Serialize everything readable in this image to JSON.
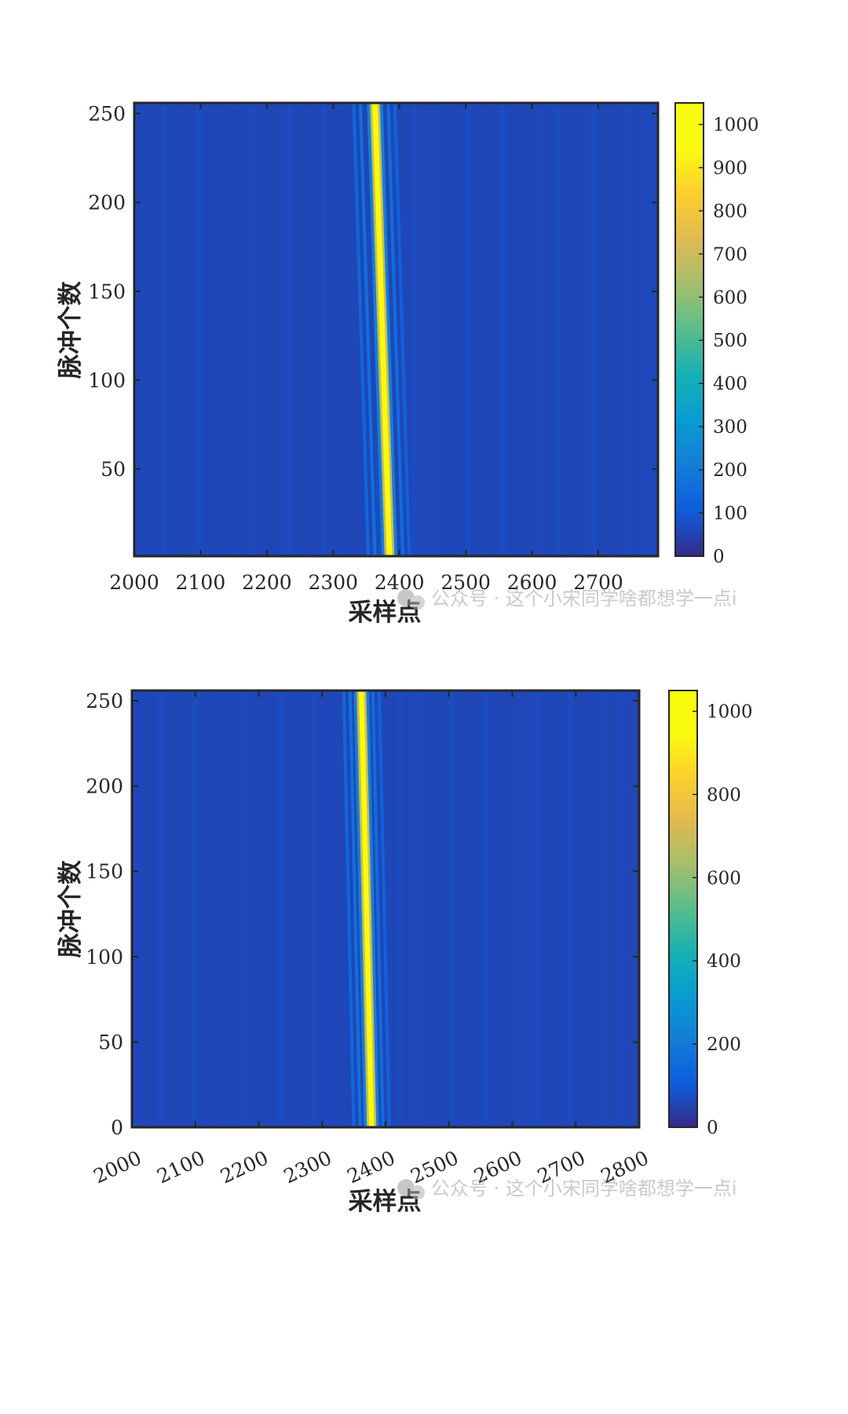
{
  "watermark": "公众号 · 这个小宋同学啥都想学一点i",
  "chart_data": [
    {
      "type": "heatmap",
      "title": "",
      "xlabel": "采样点",
      "ylabel": "脉冲个数",
      "xlim": [
        2000,
        2790
      ],
      "ylim": [
        1,
        256
      ],
      "x_ticks": [
        2000,
        2100,
        2200,
        2300,
        2400,
        2500,
        2600,
        2700
      ],
      "y_ticks": [
        50,
        100,
        150,
        200,
        250
      ],
      "x_tick_rotation": 0,
      "colorbar": {
        "min": 0,
        "max": 1050,
        "ticks": [
          0,
          100,
          200,
          300,
          400,
          500,
          600,
          700,
          800,
          900,
          1000
        ],
        "colormap": "parula"
      },
      "background_value": 60,
      "peak": {
        "value": 1000,
        "x_at_y_min": 2385,
        "x_at_y_max": 2363
      },
      "sidelobes": [
        {
          "offset": -32,
          "value": 140
        },
        {
          "offset": -22,
          "value": 170
        },
        {
          "offset": 20,
          "value": 160
        },
        {
          "offset": 30,
          "value": 120
        }
      ]
    },
    {
      "type": "heatmap",
      "title": "",
      "xlabel": "采样点",
      "ylabel": "脉冲个数",
      "xlim": [
        2000,
        2800
      ],
      "ylim": [
        0,
        256
      ],
      "x_ticks": [
        2000,
        2100,
        2200,
        2300,
        2400,
        2500,
        2600,
        2700,
        2800
      ],
      "y_ticks": [
        0,
        50,
        100,
        150,
        200,
        250
      ],
      "x_tick_rotation": -25,
      "colorbar": {
        "min": 0,
        "max": 1050,
        "ticks": [
          0,
          200,
          400,
          600,
          800,
          1000
        ],
        "colormap": "parula"
      },
      "background_value": 60,
      "peak": {
        "value": 1000,
        "x_at_y_min": 2378,
        "x_at_y_max": 2362
      },
      "sidelobes": [
        {
          "offset": -28,
          "value": 140
        },
        {
          "offset": -18,
          "value": 170
        },
        {
          "offset": 18,
          "value": 160
        },
        {
          "offset": 28,
          "value": 120
        }
      ]
    }
  ]
}
